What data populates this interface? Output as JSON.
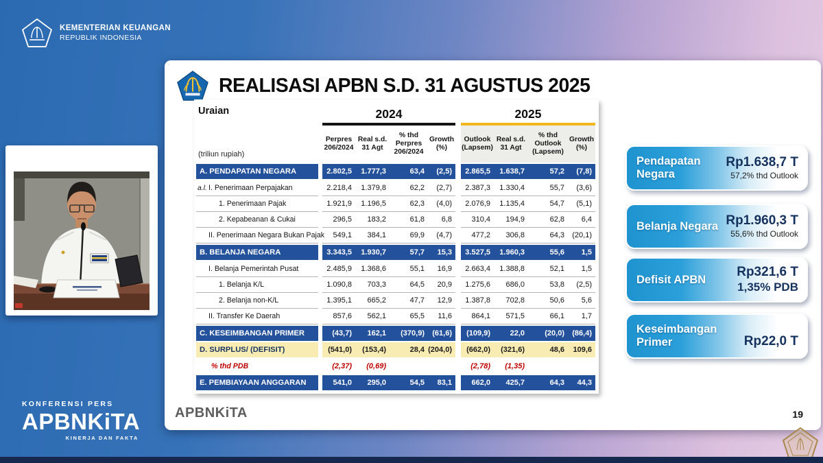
{
  "header": {
    "ministry_line1": "KEMENTERIAN KEUANGAN",
    "ministry_line2": "REPUBLIK INDONESIA"
  },
  "brand": {
    "event": "KONFERENSI PERS",
    "name": "APBNKiTA",
    "tagline": "KINERJA DAN FAKTA"
  },
  "slide": {
    "title": "REALISASI APBN S.D. 31 AGUSTUS 2025",
    "footer_logo": "APBNKiTA",
    "page_number": "19"
  },
  "table": {
    "corner_label": "Uraian",
    "unit_label": "(triliun rupiah)",
    "year_groups": [
      {
        "year": "2024",
        "columns": [
          "Perpres 206/2024",
          "Real s.d. 31 Agt",
          "% thd Perpres 206/2024",
          "Growth (%)"
        ]
      },
      {
        "year": "2025",
        "columns": [
          "Outlook (Lapsem)",
          "Real s.d. 31 Agt",
          "% thd Outlook (Lapsem)",
          "Growth (%)"
        ]
      }
    ],
    "rows": [
      {
        "style": "section",
        "label": "A. PENDAPATAN NEGARA",
        "values": [
          "2.802,5",
          "1.777,3",
          "63,4",
          "(2,5)",
          "2.865,5",
          "1.638,7",
          "57,2",
          "(7,8)"
        ]
      },
      {
        "style": "sub1",
        "prefix": "a.l.",
        "label": "I. Penerimaan Perpajakan",
        "values": [
          "2.218,4",
          "1.379,8",
          "62,2",
          "(2,7)",
          "2.387,3",
          "1.330,4",
          "55,7",
          "(3,6)"
        ]
      },
      {
        "style": "sub2",
        "label": "1. Penerimaan Pajak",
        "values": [
          "1.921,9",
          "1.196,5",
          "62,3",
          "(4,0)",
          "2.076,9",
          "1.135,4",
          "54,7",
          "(5,1)"
        ]
      },
      {
        "style": "sub2",
        "label": "2. Kepabeanan & Cukai",
        "values": [
          "296,5",
          "183,2",
          "61,8",
          "6,8",
          "310,4",
          "194,9",
          "62,8",
          "6,4"
        ]
      },
      {
        "style": "sub1",
        "label": "II. Penerimaan Negara Bukan Pajak",
        "values": [
          "549,1",
          "384,1",
          "69,9",
          "(4,7)",
          "477,2",
          "306,8",
          "64,3",
          "(20,1)"
        ]
      },
      {
        "style": "section",
        "label": "B. BELANJA NEGARA",
        "values": [
          "3.343,5",
          "1.930,7",
          "57,7",
          "15,3",
          "3.527,5",
          "1.960,3",
          "55,6",
          "1,5"
        ]
      },
      {
        "style": "sub1",
        "label": "I. Belanja Pemerintah Pusat",
        "values": [
          "2.485,9",
          "1.368,6",
          "55,1",
          "16,9",
          "2.663,4",
          "1.388,8",
          "52,1",
          "1,5"
        ]
      },
      {
        "style": "sub2",
        "label": "1. Belanja K/L",
        "values": [
          "1.090,8",
          "703,3",
          "64,5",
          "20,9",
          "1.275,6",
          "686,0",
          "53,8",
          "(2,5)"
        ]
      },
      {
        "style": "sub2",
        "label": "2. Belanja non-K/L",
        "values": [
          "1.395,1",
          "665,2",
          "47,7",
          "12,9",
          "1.387,8",
          "702,8",
          "50,6",
          "5,6"
        ]
      },
      {
        "style": "sub1",
        "label": "II. Transfer Ke Daerah",
        "values": [
          "857,6",
          "562,1",
          "65,5",
          "11,6",
          "864,1",
          "571,5",
          "66,1",
          "1,7"
        ]
      },
      {
        "style": "section",
        "label": "C. KESEIMBANGAN PRIMER",
        "values": [
          "(43,7)",
          "162,1",
          "(370,9)",
          "(61,6)",
          "(109,9)",
          "22,0",
          "(20,0)",
          "(86,4)"
        ]
      },
      {
        "style": "highlight",
        "label": "D. SURPLUS/ (DEFISIT)",
        "values": [
          "(541,0)",
          "(153,4)",
          "28,4",
          "(204,0)",
          "(662,0)",
          "(321,6)",
          "48,6",
          "109,6"
        ]
      },
      {
        "style": "pdb",
        "label": "% thd PDB",
        "values": [
          "(2,37)",
          "(0,69)",
          "",
          "",
          "(2,78)",
          "(1,35)",
          "",
          ""
        ]
      },
      {
        "style": "section",
        "label": "E. PEMBIAYAAN ANGGARAN",
        "values": [
          "541,0",
          "295,0",
          "54,5",
          "83,1",
          "662,0",
          "425,7",
          "64,3",
          "44,3"
        ]
      }
    ]
  },
  "cards": [
    {
      "title": "Pendapatan Negara",
      "value": "Rp1.638,7 T",
      "subvalue": "57,2% thd Outlook"
    },
    {
      "title": "Belanja Negara",
      "value": "Rp1.960,3 T",
      "subvalue": "55,6% thd Outlook"
    },
    {
      "title": "Defisit APBN",
      "value": "Rp321,6 T",
      "subvalue": "1,35% PDB"
    },
    {
      "title": "Keseimbangan Primer",
      "value": "Rp22,0 T",
      "subvalue": ""
    }
  ],
  "colors": {
    "table_section_blue": "#24519c",
    "highlight_yellow": "#f8ecb2",
    "year2025_gold": "#f3b71d",
    "card_blue": "#1f93cf",
    "value_navy": "#15315d",
    "negative_red": "#c00000",
    "bottom_bar_navy": "#16284d"
  }
}
